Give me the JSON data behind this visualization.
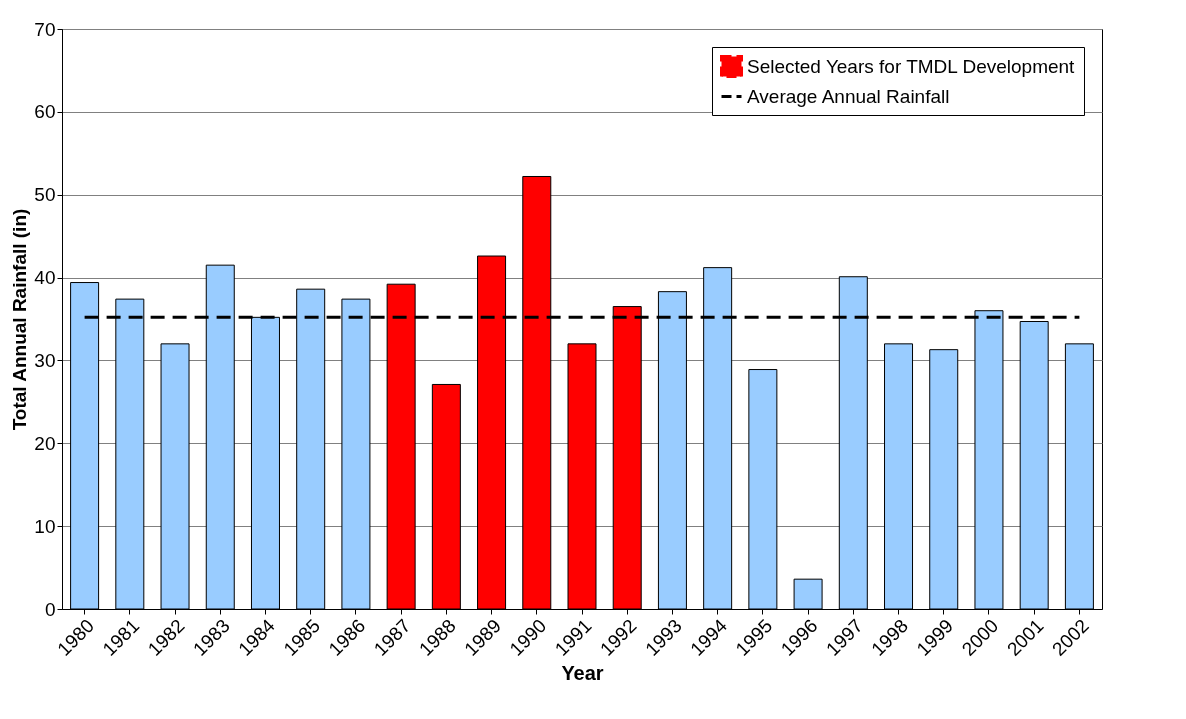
{
  "chart_data": {
    "type": "bar",
    "xlabel": "Year",
    "ylabel": "Total Annual Rainfall (in)",
    "categories": [
      "1980",
      "1981",
      "1982",
      "1983",
      "1984",
      "1985",
      "1986",
      "1987",
      "1988",
      "1989",
      "1990",
      "1991",
      "1992",
      "1993",
      "1994",
      "1995",
      "1996",
      "1997",
      "1998",
      "1999",
      "2000",
      "2001",
      "2002"
    ],
    "series": [
      {
        "color": "#99ccff",
        "values": [
          39.4,
          37.4,
          32.0,
          41.5,
          35.2,
          38.6,
          37.4,
          null,
          null,
          null,
          null,
          null,
          null,
          38.3,
          41.2,
          28.9,
          3.6,
          40.1,
          32.0,
          31.3,
          36.0,
          34.7,
          32.0
        ]
      },
      {
        "name": "Selected Years for TMDL Development",
        "color": "#ff0000",
        "values": [
          null,
          null,
          null,
          null,
          null,
          null,
          null,
          39.2,
          27.1,
          42.6,
          52.2,
          32.0,
          36.5,
          null,
          null,
          null,
          null,
          null,
          null,
          null,
          null,
          null,
          null
        ]
      },
      {
        "name": "Average Annual Rainfall",
        "type": "line",
        "line_style": "dashed",
        "color": "#000000",
        "values": [
          35.2,
          35.2,
          35.2,
          35.2,
          35.2,
          35.2,
          35.2,
          35.2,
          35.2,
          35.2,
          35.2,
          35.2,
          35.2,
          35.2,
          35.2,
          35.2,
          35.2,
          35.2,
          35.2,
          35.2,
          35.2,
          35.2,
          35.2
        ]
      }
    ],
    "ylim": [
      0,
      70
    ],
    "yticks": [
      0,
      10,
      20,
      30,
      40,
      50,
      60,
      70
    ],
    "grid": "y",
    "legend": "top right"
  }
}
